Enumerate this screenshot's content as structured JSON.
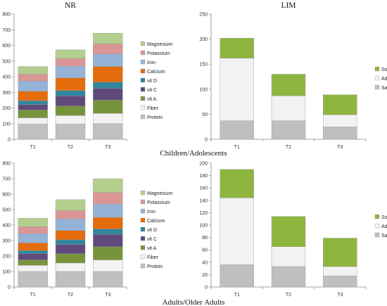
{
  "chart_data": [
    {
      "id": "nr-children",
      "type": "bar",
      "stacked": true,
      "title": "NR",
      "categories": [
        "T1",
        "T2",
        "T3"
      ],
      "ylim": [
        0,
        800
      ],
      "yticks": [
        0,
        100,
        200,
        300,
        400,
        500,
        600,
        700,
        800
      ],
      "series": [
        {
          "name": "Protein",
          "color": "#c0c0c0",
          "values": [
            97,
            97,
            100
          ]
        },
        {
          "name": "Fiber",
          "color": "#f2f2f2",
          "values": [
            40,
            55,
            65
          ]
        },
        {
          "name": "vit A",
          "color": "#77933c",
          "values": [
            50,
            60,
            85
          ]
        },
        {
          "name": "vit C",
          "color": "#604a7b",
          "values": [
            35,
            65,
            75
          ]
        },
        {
          "name": "vit D",
          "color": "#31859c",
          "values": [
            25,
            35,
            40
          ]
        },
        {
          "name": "Calcium",
          "color": "#e46c0a",
          "values": [
            60,
            80,
            100
          ]
        },
        {
          "name": "Iron",
          "color": "#95b3d7",
          "values": [
            65,
            75,
            80
          ]
        },
        {
          "name": "Potassium",
          "color": "#da9694",
          "values": [
            45,
            50,
            65
          ]
        },
        {
          "name": "Magnesium",
          "color": "#b3cf8e",
          "values": [
            48,
            55,
            68
          ]
        }
      ]
    },
    {
      "id": "lim-children",
      "type": "bar",
      "stacked": true,
      "title": "LIM",
      "categories": [
        "T1",
        "T2",
        "T3"
      ],
      "ylim": [
        0,
        250
      ],
      "yticks": [
        0,
        50,
        100,
        150,
        200,
        250
      ],
      "series": [
        {
          "name": "Saturated fat",
          "color": "#bfbfbf",
          "values": [
            37,
            37,
            25
          ]
        },
        {
          "name": "Added sugar",
          "color": "#f2f2f2",
          "values": [
            125,
            50,
            24
          ]
        },
        {
          "name": "Sodium",
          "color": "#8eb63f",
          "values": [
            40,
            43,
            40
          ]
        }
      ]
    },
    {
      "id": "nr-adults",
      "type": "bar",
      "stacked": true,
      "title": "",
      "categories": [
        "T1",
        "T2",
        "T3"
      ],
      "ylim": [
        0,
        800
      ],
      "yticks": [
        0,
        100,
        200,
        300,
        400,
        500,
        600,
        700,
        800
      ],
      "series": [
        {
          "name": "Protein",
          "color": "#c0c0c0",
          "values": [
            100,
            100,
            100
          ]
        },
        {
          "name": "Fiber",
          "color": "#f2f2f2",
          "values": [
            40,
            55,
            75
          ]
        },
        {
          "name": "vit A",
          "color": "#77933c",
          "values": [
            35,
            60,
            85
          ]
        },
        {
          "name": "vit C",
          "color": "#604a7b",
          "values": [
            40,
            60,
            80
          ]
        },
        {
          "name": "vit D",
          "color": "#31859c",
          "values": [
            20,
            30,
            35
          ]
        },
        {
          "name": "Calcium",
          "color": "#e46c0a",
          "values": [
            50,
            60,
            75
          ]
        },
        {
          "name": "Iron",
          "color": "#95b3d7",
          "values": [
            60,
            75,
            85
          ]
        },
        {
          "name": "Potassium",
          "color": "#da9694",
          "values": [
            45,
            55,
            75
          ]
        },
        {
          "name": "Magnesium",
          "color": "#b3cf8e",
          "values": [
            55,
            70,
            90
          ]
        }
      ]
    },
    {
      "id": "lim-adults",
      "type": "bar",
      "stacked": true,
      "title": "",
      "categories": [
        "T1",
        "T2",
        "T3"
      ],
      "ylim": [
        0,
        200
      ],
      "yticks": [
        0,
        20,
        40,
        60,
        80,
        100,
        120,
        140,
        160,
        180,
        200
      ],
      "series": [
        {
          "name": "Saturated fat",
          "color": "#bfbfbf",
          "values": [
            36,
            33,
            18
          ]
        },
        {
          "name": "Added sugar",
          "color": "#f2f2f2",
          "values": [
            108,
            32,
            15
          ]
        },
        {
          "name": "Sodium",
          "color": "#8eb63f",
          "values": [
            46,
            49,
            46
          ]
        }
      ]
    }
  ],
  "labels": {
    "row1": "Children/Adolescents",
    "row2": "Adults/Older Adults"
  },
  "legend_placement": "right",
  "grid": false
}
